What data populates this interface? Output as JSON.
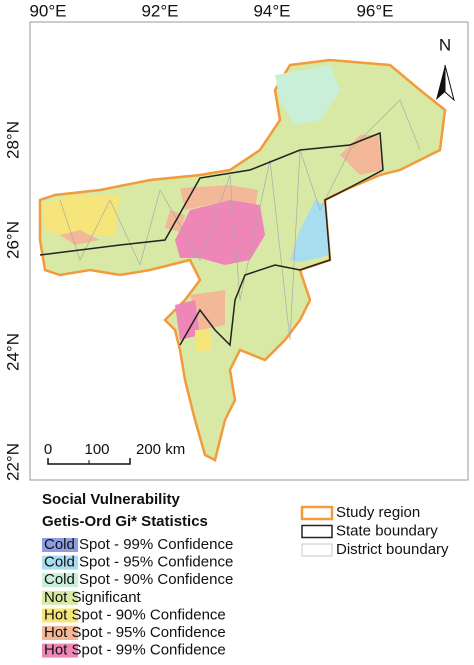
{
  "axes": {
    "longitude": [
      "90°E",
      "92°E",
      "94°E",
      "96°E"
    ],
    "latitude": [
      "28°N",
      "26°N",
      "24°N",
      "22°N"
    ]
  },
  "north": "N",
  "scale_bar": [
    "0",
    "100",
    "200 km"
  ],
  "legend": {
    "title": "Social Vulnerability",
    "subtitle": "Getis-Ord Gi* Statistics",
    "classes": [
      {
        "label": "Cold Spot - 99% Confidence",
        "color": "#8e9de2"
      },
      {
        "label": "Cold Spot - 95% Confidence",
        "color": "#a8dcef"
      },
      {
        "label": "Cold Spot - 90% Confidence",
        "color": "#c9efd9"
      },
      {
        "label": "Not Significant",
        "color": "#d8e9a6"
      },
      {
        "label": "Hot Spot - 90% Confidence",
        "color": "#f6e57a"
      },
      {
        "label": "Hot Spot - 95% Confidence",
        "color": "#f2b898"
      },
      {
        "label": "Hot Spot - 99% Confidence",
        "color": "#ee86b8"
      }
    ],
    "boundaries": [
      "Study region",
      "State boundary",
      "District boundary"
    ]
  }
}
